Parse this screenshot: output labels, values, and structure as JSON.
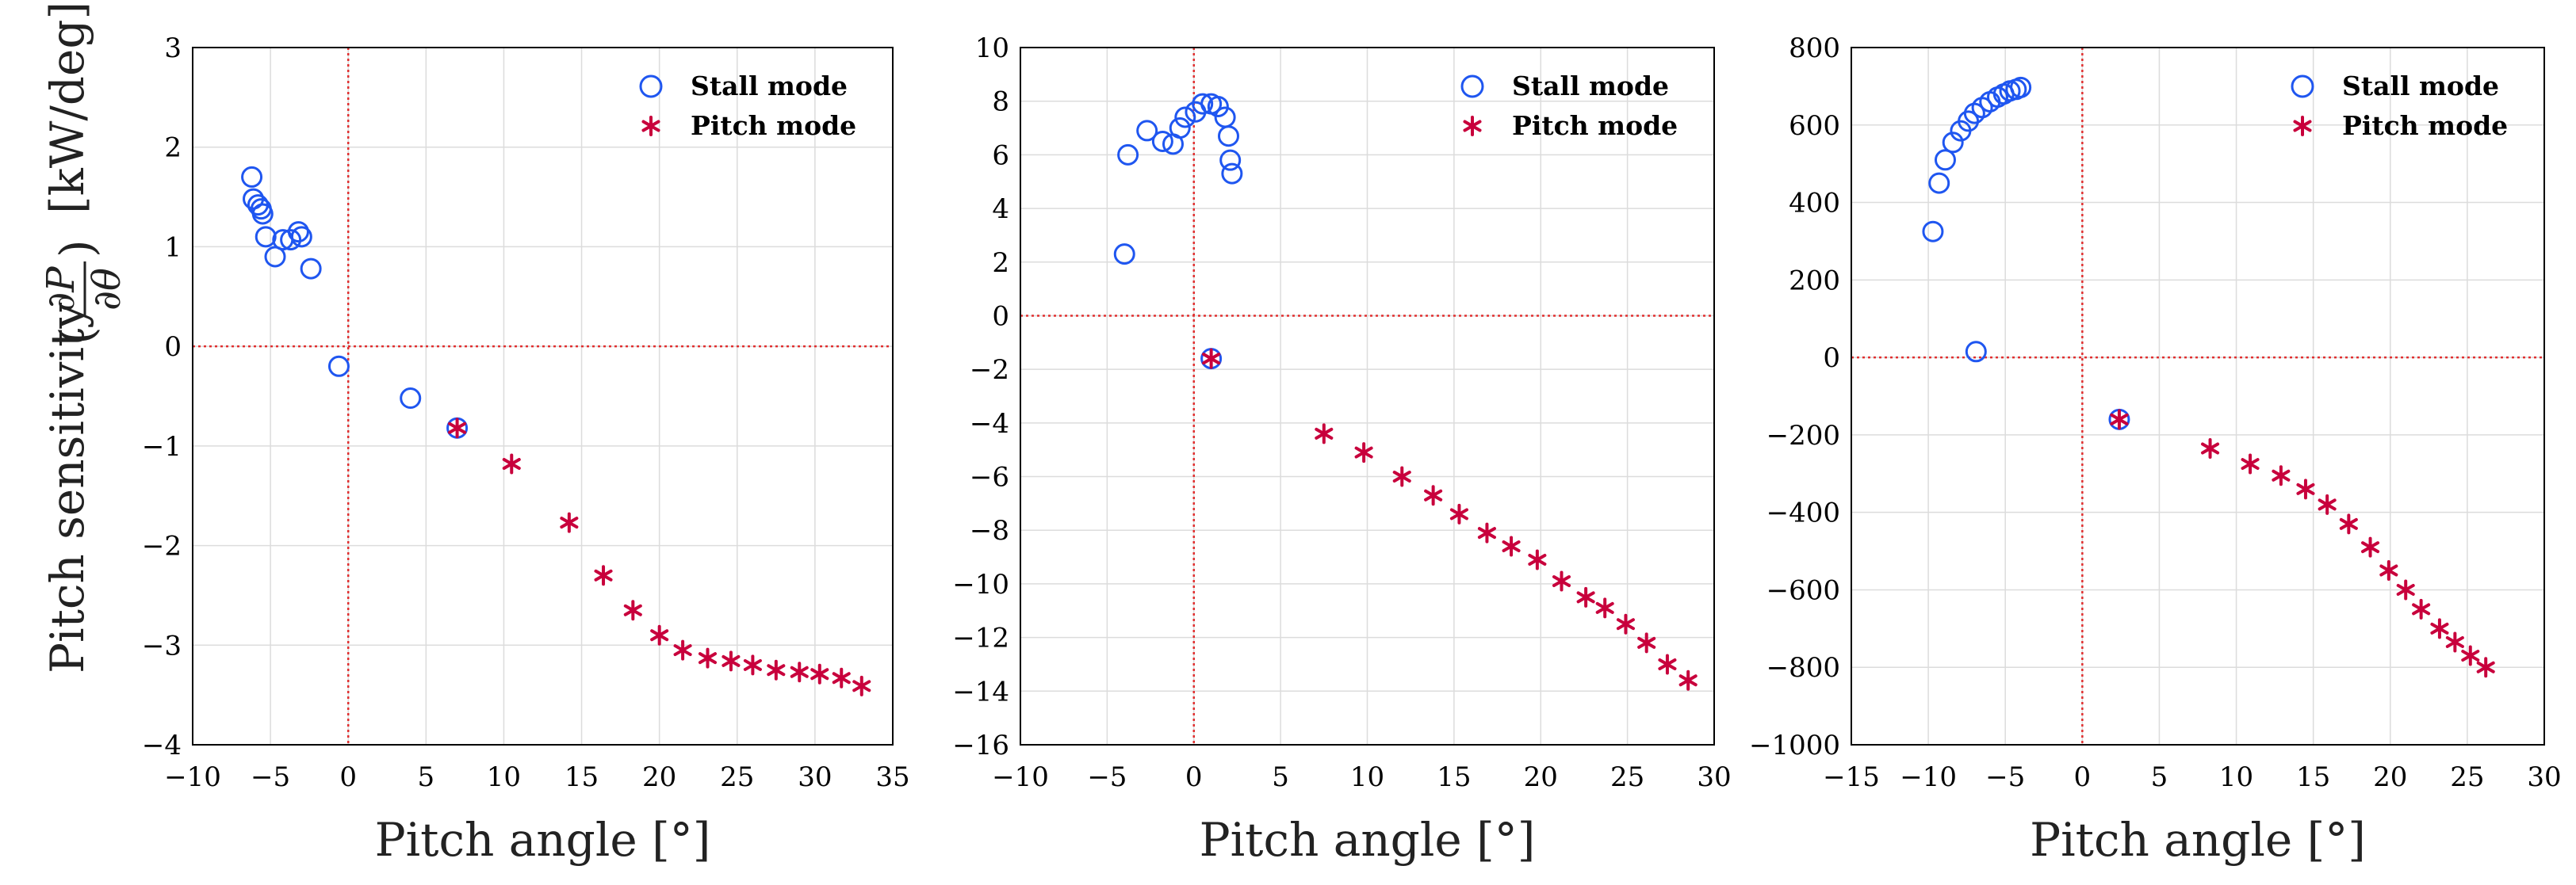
{
  "figure": {
    "ylabel_prefix": "Pitch sensitivity",
    "ylabel_frac_num": "∂P",
    "ylabel_frac_den": "∂θ",
    "ylabel_unit": "[kW/deg]",
    "colors": {
      "stall": "#1f56f0",
      "pitch": "#c8003c",
      "zero_line": "#e03030",
      "grid": "#dcdcdc"
    }
  },
  "chart_data": [
    {
      "type": "scatter",
      "xlabel": "Pitch angle [°]",
      "xlim": [
        -10,
        35
      ],
      "ylim": [
        -4,
        3
      ],
      "xticks": [
        -10,
        -5,
        0,
        5,
        10,
        15,
        20,
        25,
        30,
        35
      ],
      "yticks": [
        -4,
        -3,
        -2,
        -1,
        0,
        1,
        2,
        3
      ],
      "legend": [
        "Stall mode",
        "Pitch mode"
      ],
      "legend_position": "top-right",
      "series": [
        {
          "name": "Stall mode",
          "marker": "circle",
          "x": [
            -6.2,
            -6.1,
            -5.8,
            -5.6,
            -5.5,
            -5.3,
            -4.7,
            -4.2,
            -3.7,
            -3.2,
            -3.0,
            -2.4,
            -0.6,
            4.0,
            7.0
          ],
          "y": [
            1.7,
            1.48,
            1.42,
            1.38,
            1.33,
            1.1,
            0.9,
            1.07,
            1.07,
            1.15,
            1.1,
            0.78,
            -0.2,
            -0.52,
            -0.82
          ]
        },
        {
          "name": "Pitch mode",
          "marker": "asterisk",
          "x": [
            7.0,
            10.5,
            14.2,
            16.4,
            18.3,
            20.0,
            21.5,
            23.1,
            24.6,
            26.0,
            27.5,
            29.0,
            30.3,
            31.7,
            33.0
          ],
          "y": [
            -0.82,
            -1.18,
            -1.77,
            -2.3,
            -2.65,
            -2.9,
            -3.05,
            -3.13,
            -3.16,
            -3.2,
            -3.25,
            -3.27,
            -3.29,
            -3.33,
            -3.41
          ]
        }
      ]
    },
    {
      "type": "scatter",
      "xlabel": "Pitch angle [°]",
      "xlim": [
        -10,
        30
      ],
      "ylim": [
        -16,
        10
      ],
      "xticks": [
        -10,
        -5,
        0,
        5,
        10,
        15,
        20,
        25,
        30
      ],
      "yticks": [
        -16,
        -14,
        -12,
        -10,
        -8,
        -6,
        -4,
        -2,
        0,
        2,
        4,
        6,
        8,
        10
      ],
      "legend": [
        "Stall mode",
        "Pitch mode"
      ],
      "legend_position": "top-right",
      "series": [
        {
          "name": "Stall mode",
          "marker": "circle",
          "x": [
            -4.0,
            -3.8,
            -2.7,
            -1.8,
            -1.2,
            -0.8,
            -0.5,
            0.1,
            0.5,
            1.0,
            1.4,
            1.8,
            2.0,
            2.1,
            2.2,
            1.0
          ],
          "y": [
            2.3,
            6.0,
            6.9,
            6.5,
            6.4,
            7.0,
            7.4,
            7.6,
            7.9,
            7.9,
            7.8,
            7.4,
            6.7,
            5.8,
            5.3,
            -1.6
          ]
        },
        {
          "name": "Pitch mode",
          "marker": "asterisk",
          "x": [
            1.0,
            7.5,
            9.8,
            12.0,
            13.8,
            15.3,
            16.9,
            18.3,
            19.8,
            21.2,
            22.6,
            23.7,
            24.9,
            26.1,
            27.3,
            28.5
          ],
          "y": [
            -1.6,
            -4.4,
            -5.1,
            -6.0,
            -6.7,
            -7.4,
            -8.1,
            -8.6,
            -9.1,
            -9.9,
            -10.5,
            -10.9,
            -11.5,
            -12.2,
            -13.0,
            -13.6
          ]
        }
      ]
    },
    {
      "type": "scatter",
      "xlabel": "Pitch angle [°]",
      "xlim": [
        -15,
        30
      ],
      "ylim": [
        -1000,
        800
      ],
      "xticks": [
        -15,
        -10,
        -5,
        0,
        5,
        10,
        15,
        20,
        25,
        30
      ],
      "yticks": [
        -1000,
        -800,
        -600,
        -400,
        -200,
        0,
        200,
        400,
        600,
        800
      ],
      "legend": [
        "Stall mode",
        "Pitch mode"
      ],
      "legend_position": "top-right",
      "series": [
        {
          "name": "Stall mode",
          "marker": "circle",
          "x": [
            -9.7,
            -9.3,
            -8.9,
            -8.4,
            -7.9,
            -7.4,
            -7.0,
            -6.5,
            -6.0,
            -5.5,
            -5.1,
            -4.7,
            -4.3,
            -4.0,
            -6.9,
            2.4
          ],
          "y": [
            325,
            450,
            510,
            555,
            585,
            610,
            630,
            645,
            660,
            672,
            680,
            688,
            692,
            697,
            15,
            -160
          ]
        },
        {
          "name": "Pitch mode",
          "marker": "asterisk",
          "x": [
            2.4,
            8.3,
            10.9,
            12.9,
            14.5,
            15.9,
            17.3,
            18.7,
            19.9,
            21.0,
            22.0,
            23.2,
            24.2,
            25.2,
            26.2
          ],
          "y": [
            -160,
            -235,
            -275,
            -305,
            -340,
            -380,
            -430,
            -490,
            -550,
            -600,
            -650,
            -700,
            -735,
            -770,
            -800
          ]
        }
      ]
    }
  ]
}
